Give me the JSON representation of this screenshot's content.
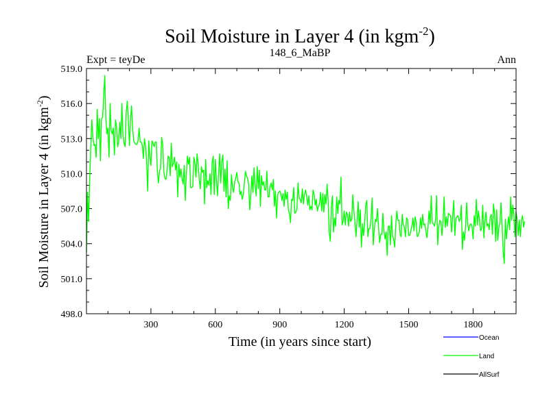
{
  "colors": {
    "ocean": "#0000ff",
    "land": "#00ff00",
    "allsurf": "#000000",
    "axis": "#000000",
    "background": "#ffffff"
  },
  "chart_data": {
    "type": "line",
    "title": "Soil Moisture in Layer 4 (in kgm",
    "title_sup": "-2",
    "title_end": ")",
    "subtitle_left": "Expt = teyDe",
    "subtitle_center": "148_6_MaBP",
    "subtitle_right": "Ann",
    "xlabel": "Time (in years since start)",
    "ylabel": "Soil Moisture in Layer 4 (in kgm",
    "ylabel_sup": "-2",
    "ylabel_end": ")",
    "xlim": [
      0,
      2000
    ],
    "ylim": [
      498.0,
      519.0
    ],
    "xticks": [
      300,
      600,
      900,
      1200,
      1500,
      1800
    ],
    "yticks": [
      "498.0",
      "501.0",
      "504.0",
      "507.0",
      "510.0",
      "513.0",
      "516.0",
      "519.0"
    ],
    "legend": {
      "placement": "below-right",
      "entries": [
        "Ocean",
        "Land",
        "AllSurf"
      ]
    },
    "series": [
      {
        "name": "Land",
        "x_start": 0,
        "x_step": 5,
        "values": [
          503.3,
          508.4,
          505.9,
          509.6,
          512.3,
          514.6,
          513.1,
          512.4,
          512.5,
          511.4,
          515.5,
          513.0,
          514.7,
          511.1,
          514.7,
          514.8,
          516.5,
          518.4,
          514.8,
          513.4,
          513.9,
          511.4,
          516.0,
          513.7,
          513.4,
          513.9,
          511.6,
          514.6,
          514.0,
          512.3,
          512.7,
          514.4,
          513.0,
          516.0,
          513.3,
          512.6,
          512.3,
          515.2,
          516.2,
          514.6,
          512.4,
          514.7,
          515.8,
          513.8,
          512.8,
          512.6,
          512.5,
          512.5,
          512.8,
          513.9,
          512.7,
          512.7,
          512.4,
          511.3,
          513.0,
          512.3,
          511.1,
          508.5,
          512.8,
          511.5,
          510.7,
          512.8,
          512.6,
          512.3,
          512.7,
          512.7,
          510.3,
          509.2,
          510.2,
          510.5,
          513.1,
          512.5,
          510.2,
          509.6,
          509.5,
          510.2,
          511.5,
          511.4,
          509.8,
          512.6,
          510.6,
          510.9,
          511.4,
          510.3,
          511.0,
          508.0,
          510.8,
          509.7,
          510.4,
          509.6,
          509.1,
          510.7,
          507.7,
          509.9,
          511.5,
          510.8,
          511.4,
          508.8,
          508.8,
          508.9,
          511.4,
          510.9,
          509.7,
          511.7,
          510.8,
          509.5,
          508.7,
          510.6,
          510.1,
          510.3,
          507.4,
          511.2,
          508.8,
          509.4,
          509.0,
          510.0,
          508.2,
          510.9,
          511.5,
          508.2,
          511.2,
          509.4,
          508.1,
          510.0,
          511.7,
          509.2,
          511.0,
          511.6,
          508.5,
          510.4,
          508.0,
          511.1,
          507.0,
          508.1,
          507.7,
          509.9,
          508.8,
          508.4,
          509.3,
          509.6,
          510.1,
          509.3,
          509.2,
          508.2,
          508.5,
          507.8,
          508.2,
          509.2,
          510.2,
          509.8,
          509.6,
          509.1,
          506.9,
          508.0,
          509.8,
          508.4,
          510.5,
          509.0,
          508.1,
          510.6,
          508.7,
          510.3,
          507.2,
          509.8,
          509.0,
          509.3,
          508.6,
          508.6,
          510.2,
          508.0,
          508.0,
          508.9,
          509.2,
          508.6,
          509.5,
          507.2,
          508.5,
          506.2,
          508.2,
          508.4,
          508.5,
          508.3,
          507.7,
          508.3,
          507.2,
          508.6,
          507.8,
          508.4,
          506.9,
          506.6,
          505.8,
          507.8,
          507.7,
          508.8,
          506.6,
          506.7,
          507.0,
          509.2,
          507.9,
          507.8,
          507.5,
          508.7,
          507.4,
          508.2,
          508.6,
          508.1,
          507.3,
          508.1,
          506.9,
          507.2,
          506.9,
          508.6,
          508.2,
          507.3,
          507.8,
          506.8,
          507.2,
          507.4,
          508.4,
          506.8,
          508.3,
          506.7,
          508.2,
          507.4,
          509.1,
          507.8,
          505.0,
          504.2,
          507.2,
          508.1,
          505.0,
          506.2,
          505.5,
          508.0,
          506.6,
          507.7,
          507.4,
          509.7,
          505.6,
          505.9,
          506.8,
          505.6,
          506.7,
          506.5,
          505.5,
          506.7,
          505.9,
          506.1,
          508.2,
          506.8,
          505.8,
          504.6,
          506.1,
          507.6,
          505.4,
          506.9,
          503.7,
          505.7,
          504.7,
          505.7,
          507.3,
          507.7,
          504.6,
          505.3,
          505.3,
          506.2,
          507.9,
          503.9,
          505.2,
          506.1,
          505.9,
          507.0,
          505.3,
          504.1,
          504.8,
          504.8,
          506.6,
          505.1,
          504.4,
          505.0,
          503.0,
          505.5,
          505.5,
          503.9,
          506.4,
          504.6,
          504.4,
          503.7,
          505.6,
          506.8,
          506.0,
          506.0,
          504.8,
          504.6,
          506.5,
          505.6,
          505.4,
          504.6,
          506.2,
          506.1,
          504.7,
          504.7,
          505.1,
          505.5,
          506.2,
          505.1,
          506.3,
          505.8,
          504.6,
          504.7,
          505.1,
          506.2,
          505.3,
          506.5,
          505.6,
          505.7,
          505.1,
          504.5,
          505.4,
          506.8,
          505.7,
          508.1,
          505.8,
          505.7,
          505.5,
          506.0,
          508.1,
          503.9,
          505.4,
          506.0,
          505.9,
          504.7,
          505.8,
          508.0,
          505.4,
          506.3,
          505.5,
          506.6,
          506.5,
          506.4,
          505.0,
          506.4,
          507.7,
          504.7,
          506.2,
          506.3,
          506.4,
          505.9,
          506.1,
          507.3,
          503.5,
          505.0,
          504.3,
          505.5,
          507.5,
          505.7,
          505.1,
          505.6,
          505.7,
          505.5,
          504.4,
          506.4,
          505.5,
          507.8,
          505.6,
          506.8,
          506.0,
          505.1,
          505.3,
          507.3,
          504.5,
          506.0,
          506.7,
          505.5,
          505.7,
          505.2,
          506.3,
          506.5,
          504.8,
          507.4,
          506.6,
          504.2,
          506.9,
          504.3,
          505.4,
          505.8,
          507.5,
          505.5,
          503.4,
          502.3,
          506.1,
          504.4,
          505.4,
          506.3,
          505.2,
          508.0,
          506.0,
          507.3,
          506.5,
          504.6,
          506.7,
          506.1,
          504.7,
          506.0,
          504.6,
          506.0,
          506.4,
          505.4,
          505.9
        ]
      }
    ]
  }
}
